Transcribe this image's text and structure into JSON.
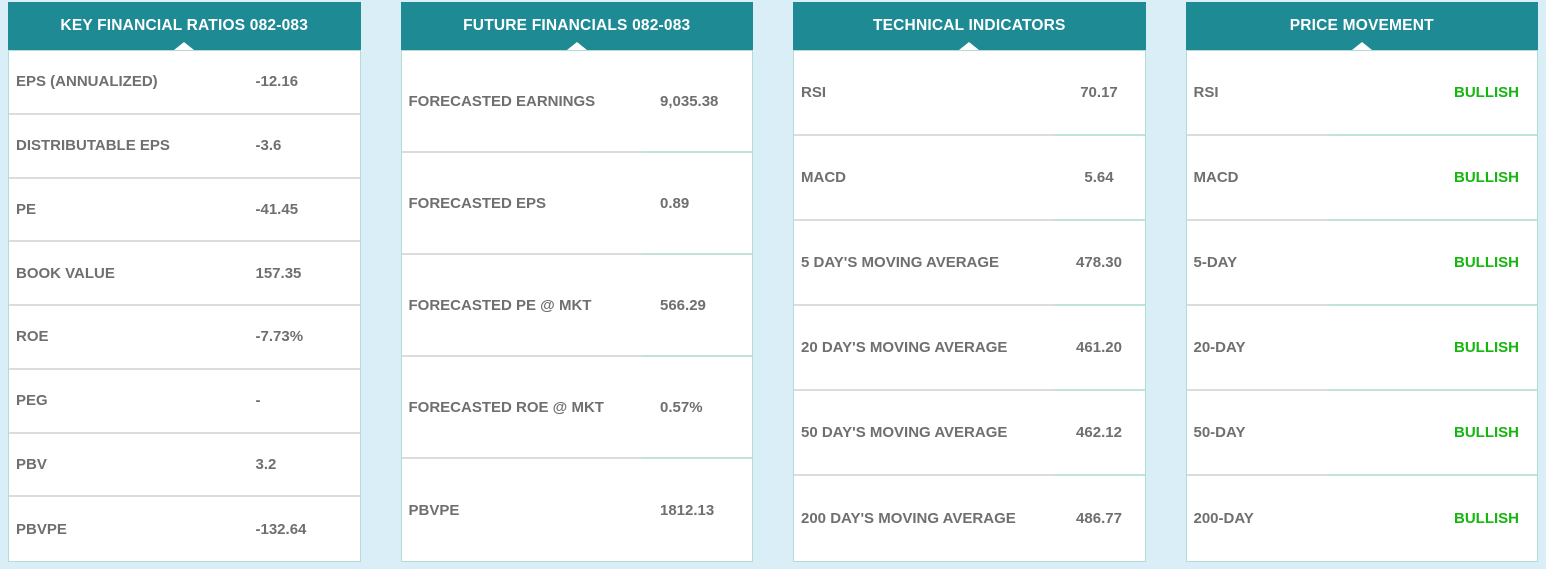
{
  "colors": {
    "header_bg": "#1e8a94",
    "header_text": "#ffffff",
    "label_text": "#6f6f6f",
    "value_text": "#6f6f6f",
    "bullish_green": "#16b50f",
    "page_bg": "#d9eef6",
    "panel_border": "#b5dcd4",
    "separator_gray": "#dcdcdc",
    "separator_teal": "#c0e3da"
  },
  "panels": [
    {
      "title": "KEY FINANCIAL RATIOS 082-083",
      "rows": [
        {
          "label": "EPS (ANNUALIZED)",
          "value": "-12.16"
        },
        {
          "label": "DISTRIBUTABLE EPS",
          "value": "-3.6"
        },
        {
          "label": "PE",
          "value": "-41.45"
        },
        {
          "label": "BOOK VALUE",
          "value": "157.35"
        },
        {
          "label": "ROE",
          "value": "-7.73%"
        },
        {
          "label": "PEG",
          "value": "-"
        },
        {
          "label": "PBV",
          "value": "3.2"
        },
        {
          "label": "PBVPE",
          "value": "-132.64"
        }
      ]
    },
    {
      "title": "FUTURE FINANCIALS 082-083",
      "rows": [
        {
          "label": "FORECASTED EARNINGS",
          "value": "9,035.38"
        },
        {
          "label": "FORECASTED EPS",
          "value": "0.89"
        },
        {
          "label": "FORECASTED PE @ MKT",
          "value": "566.29"
        },
        {
          "label": "FORECASTED ROE @ MKT",
          "value": "0.57%"
        },
        {
          "label": "PBVPE",
          "value": "1812.13"
        }
      ]
    },
    {
      "title": "TECHNICAL INDICATORS",
      "rows": [
        {
          "label": "RSI",
          "value": "70.17"
        },
        {
          "label": "MACD",
          "value": "5.64"
        },
        {
          "label": "5 DAY'S MOVING AVERAGE",
          "value": "478.30"
        },
        {
          "label": "20 DAY'S MOVING AVERAGE",
          "value": "461.20"
        },
        {
          "label": "50 DAY'S MOVING AVERAGE",
          "value": "462.12"
        },
        {
          "label": "200 DAY'S MOVING AVERAGE",
          "value": "486.77"
        }
      ]
    },
    {
      "title": "PRICE MOVEMENT",
      "rows": [
        {
          "label": "RSI",
          "value": "BULLISH"
        },
        {
          "label": "MACD",
          "value": "BULLISH"
        },
        {
          "label": "5-DAY",
          "value": "BULLISH"
        },
        {
          "label": "20-DAY",
          "value": "BULLISH"
        },
        {
          "label": "50-DAY",
          "value": "BULLISH"
        },
        {
          "label": "200-DAY",
          "value": "BULLISH"
        }
      ]
    }
  ]
}
